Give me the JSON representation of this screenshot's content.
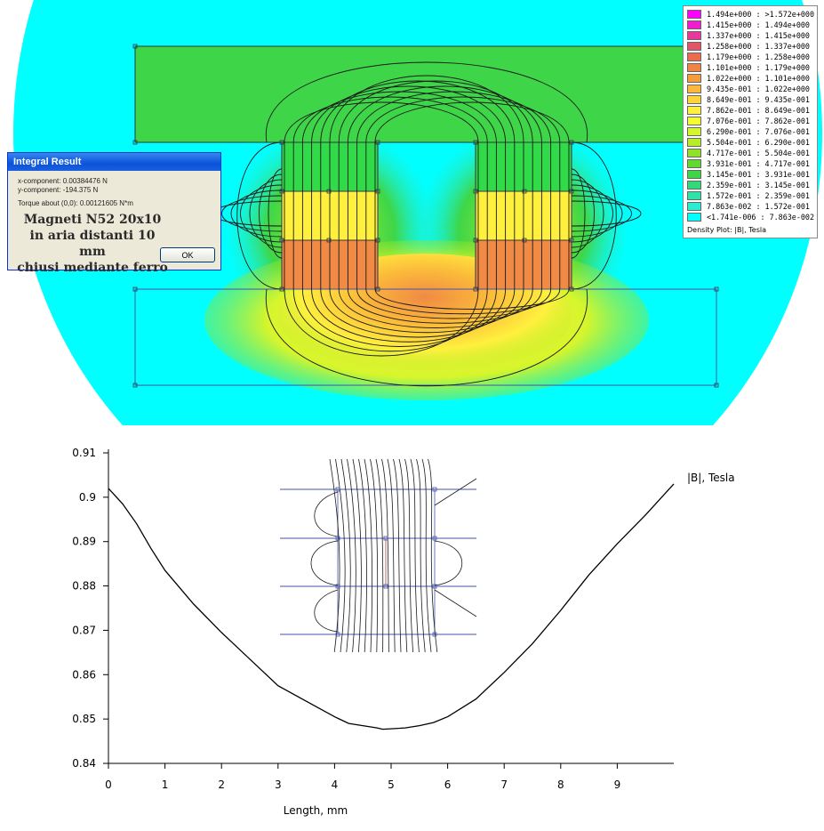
{
  "dialog": {
    "title": "Integral Result",
    "x_component": "x-component: 0.00384476 N",
    "y_component": "y-component: -194.375 N",
    "torque": "Torque about (0,0): 0.00121605 N*m",
    "note_line1": "Magneti N52 20x10",
    "note_line2": "in aria distanti 10 mm",
    "note_line3": "chiusi mediante ferro",
    "ok_label": "OK"
  },
  "legend": {
    "title": "Density Plot: |B|, Tesla",
    "entries": [
      {
        "label": "1.494e+000 : >1.572e+000",
        "color": "#ff00ff"
      },
      {
        "label": "1.415e+000 : 1.494e+000",
        "color": "#f01ccf"
      },
      {
        "label": "1.337e+000 : 1.415e+000",
        "color": "#e6399a"
      },
      {
        "label": "1.258e+000 : 1.337e+000",
        "color": "#e25568"
      },
      {
        "label": "1.179e+000 : 1.258e+000",
        "color": "#ea6b4e"
      },
      {
        "label": "1.101e+000 : 1.179e+000",
        "color": "#f08445"
      },
      {
        "label": "1.022e+000 : 1.101e+000",
        "color": "#f59d3c"
      },
      {
        "label": "9.435e-001 : 1.022e+000",
        "color": "#fbb83a"
      },
      {
        "label": "8.649e-001 : 9.435e-001",
        "color": "#ffd43a"
      },
      {
        "label": "7.862e-001 : 8.649e-001",
        "color": "#fff03e"
      },
      {
        "label": "7.076e-001 : 7.862e-001",
        "color": "#f2fb33"
      },
      {
        "label": "6.290e-001 : 7.076e-001",
        "color": "#d6f52c"
      },
      {
        "label": "5.504e-001 : 6.290e-001",
        "color": "#b6ec28"
      },
      {
        "label": "4.717e-001 : 5.504e-001",
        "color": "#8fe229"
      },
      {
        "label": "3.931e-001 : 4.717e-001",
        "color": "#62d92e"
      },
      {
        "label": "3.145e-001 : 3.931e-001",
        "color": "#3ed648"
      },
      {
        "label": "2.359e-001 : 3.145e-001",
        "color": "#31da78"
      },
      {
        "label": "1.572e-001 : 2.359e-001",
        "color": "#2ee3a8"
      },
      {
        "label": "7.863e-002 : 1.572e-001",
        "color": "#2ceccf"
      },
      {
        "label": "<1.741e-006 : 7.863e-002",
        "color": "#00ffff"
      }
    ]
  },
  "chart_data": {
    "type": "line",
    "series": [
      {
        "name": "|B|, Tesla",
        "x": [
          0.0,
          0.25,
          0.5,
          0.75,
          1.0,
          1.5,
          2.0,
          2.5,
          3.0,
          3.5,
          4.0,
          4.25,
          4.5,
          4.75,
          4.85,
          5.0,
          5.25,
          5.5,
          5.75,
          6.0,
          6.5,
          7.0,
          7.5,
          8.0,
          8.5,
          9.0,
          9.5,
          10.0
        ],
        "y": [
          0.902,
          0.8985,
          0.894,
          0.8885,
          0.8835,
          0.876,
          0.8695,
          0.8635,
          0.8575,
          0.854,
          0.8505,
          0.849,
          0.8485,
          0.848,
          0.8477,
          0.8478,
          0.848,
          0.8485,
          0.8492,
          0.8505,
          0.8545,
          0.8605,
          0.867,
          0.8745,
          0.8825,
          0.8895,
          0.896,
          0.903
        ]
      }
    ],
    "series_label": "|B|, Tesla",
    "xlabel": "Length, mm",
    "ylabel": "",
    "xlim": [
      0,
      10
    ],
    "ylim": [
      0.84,
      0.91
    ],
    "x_ticks": [
      0,
      1,
      2,
      3,
      4,
      5,
      6,
      7,
      8,
      9
    ],
    "y_ticks": [
      0.84,
      0.85,
      0.86,
      0.87,
      0.88,
      0.89,
      0.9,
      0.91
    ],
    "x_tick_labels": [
      "0",
      "1",
      "2",
      "3",
      "4",
      "5",
      "6",
      "7",
      "8",
      "9"
    ],
    "y_tick_labels": [
      "0.84",
      "0.85",
      "0.86",
      "0.87",
      "0.88",
      "0.89",
      "0.9",
      "0.91"
    ],
    "grid": false
  }
}
